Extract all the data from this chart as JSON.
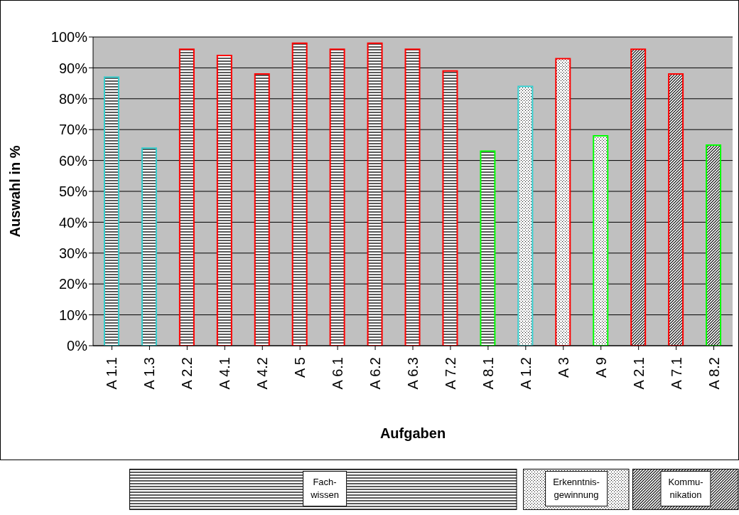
{
  "chart_data": {
    "type": "bar",
    "stacked": true,
    "xlabel": "Aufgaben",
    "ylabel": "Auswahl in %",
    "categories": [
      "A 1.1",
      "A 1.3",
      "A 2.2",
      "A 4.1",
      "A 4.2",
      "A 5",
      "A 6.1",
      "A 6.2",
      "A 6.3",
      "A 7.2",
      "A 8.1",
      "A 1.2",
      "A 3",
      "A 9",
      "A 2.1",
      "A 7.1",
      "A 8.2"
    ],
    "series": [
      {
        "color": "#000000",
        "colors": [
          "#33cccc",
          "#33cccc",
          "#ff0000",
          "#ff0000",
          "#ff0000",
          "#ff0000",
          "#ff0000",
          "#ff0000",
          "#ff0000",
          "#ff0000",
          "#00ff00",
          null,
          null,
          null,
          null,
          null,
          null
        ],
        "values": [
          87,
          64,
          96,
          94,
          88,
          98,
          96,
          98,
          96,
          89,
          63,
          null,
          null,
          null,
          null,
          null,
          null
        ]
      },
      {
        "color": "#000000",
        "colors": [
          null,
          null,
          null,
          null,
          null,
          null,
          null,
          null,
          null,
          null,
          null,
          "#33cccc",
          "#ff0000",
          "#00ff00",
          null,
          null,
          null
        ],
        "values": [
          null,
          null,
          null,
          null,
          null,
          null,
          null,
          null,
          null,
          null,
          null,
          84,
          93,
          68,
          null,
          null,
          null
        ]
      },
      {
        "color": "#000000",
        "colors": [
          null,
          null,
          null,
          null,
          null,
          null,
          null,
          null,
          null,
          null,
          null,
          null,
          null,
          null,
          "#ff0000",
          "#ff0000",
          "#00ff00"
        ],
        "values": [
          null,
          null,
          null,
          null,
          null,
          null,
          null,
          null,
          null,
          null,
          null,
          null,
          null,
          null,
          96,
          88,
          65
        ]
      }
    ],
    "ylim": [
      0,
      100
    ],
    "yticks": [
      {
        "value": 0,
        "label": "0%"
      },
      {
        "value": 10,
        "label": "10%"
      },
      {
        "value": 20,
        "label": "20%"
      },
      {
        "value": 30,
        "label": "30%"
      },
      {
        "value": 40,
        "label": "40%"
      },
      {
        "value": 50,
        "label": "50%"
      },
      {
        "value": 60,
        "label": "60%"
      },
      {
        "value": 70,
        "label": "70%"
      },
      {
        "value": 80,
        "label": "80%"
      },
      {
        "value": 90,
        "label": "90%"
      },
      {
        "value": 100,
        "label": "100%"
      }
    ],
    "grid": "y",
    "annotations": [
      "Fach-wissen",
      "Erkenntnis-gewinnung",
      "Kommu-nikation"
    ]
  }
}
